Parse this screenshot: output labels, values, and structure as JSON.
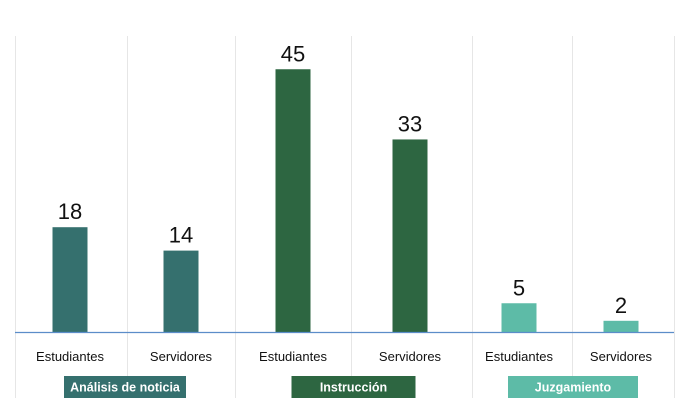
{
  "chart_data": {
    "type": "bar",
    "groups": [
      {
        "label": "Análisis de noticia",
        "color": "#35706E",
        "categories": [
          "Estudiantes",
          "Servidores"
        ],
        "values": [
          18,
          14
        ]
      },
      {
        "label": "Instrucción",
        "color": "#2D6641",
        "categories": [
          "Estudiantes",
          "Servidores"
        ],
        "values": [
          45,
          33
        ]
      },
      {
        "label": "Juzgamiento",
        "color": "#5DBBA7",
        "categories": [
          "Estudiantes",
          "Servidores"
        ],
        "values": [
          5,
          2
        ]
      }
    ],
    "ylim": [
      0,
      50
    ],
    "data_labels": true,
    "grid": false,
    "legend": "none"
  }
}
